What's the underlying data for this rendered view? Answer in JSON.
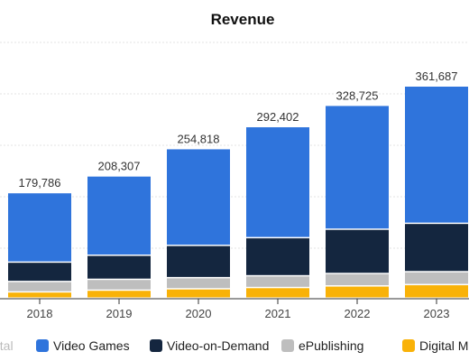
{
  "chart_data": {
    "type": "bar",
    "stacked": true,
    "title": "Revenue",
    "categories": [
      "2018",
      "2019",
      "2020",
      "2021",
      "2022",
      "2023"
    ],
    "totals_labels": [
      "179,786",
      "208,307",
      "254,818",
      "292,402",
      "328,725",
      "361,687"
    ],
    "totals": [
      179786,
      208307,
      254818,
      292402,
      328725,
      361687
    ],
    "series": [
      {
        "name": "Digital M",
        "color": "#f9b208",
        "values": [
          10500,
          13500,
          15800,
          18000,
          20700,
          23000
        ]
      },
      {
        "name": "ePublishing",
        "color": "#bebebe",
        "values": [
          17800,
          18500,
          19000,
          20000,
          21200,
          22000
        ]
      },
      {
        "name": "Video-on-Demand",
        "color": "#14263f",
        "values": [
          33000,
          41000,
          55000,
          65000,
          75500,
          82500
        ]
      },
      {
        "name": "Video Games",
        "color": "#2f74dc",
        "values": [
          118486,
          135307,
          165018,
          189402,
          211325,
          234187
        ]
      }
    ],
    "legend": {
      "placement": "bottom",
      "order": [
        "otal",
        "Video Games",
        "Video-on-Demand",
        "ePublishing",
        "Digital M"
      ],
      "clipped_first_label": "otal"
    },
    "ylim": [
      0,
      400000
    ],
    "grid": true,
    "xlabel": "",
    "ylabel": ""
  }
}
